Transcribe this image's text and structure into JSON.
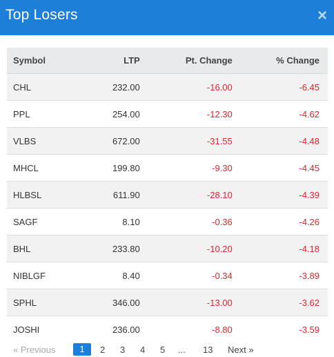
{
  "header": {
    "title": "Top Losers",
    "close_symbol": "×"
  },
  "table": {
    "columns": {
      "symbol": "Symbol",
      "ltp": "LTP",
      "pt_change": "Pt. Change",
      "pct_change": "% Change"
    },
    "rows": [
      {
        "symbol": "CHL",
        "ltp": "232.00",
        "pt_change": "-16.00",
        "pct_change": "-6.45"
      },
      {
        "symbol": "PPL",
        "ltp": "254.00",
        "pt_change": "-12.30",
        "pct_change": "-4.62"
      },
      {
        "symbol": "VLBS",
        "ltp": "672.00",
        "pt_change": "-31.55",
        "pct_change": "-4.48"
      },
      {
        "symbol": "MHCL",
        "ltp": "199.80",
        "pt_change": "-9.30",
        "pct_change": "-4.45"
      },
      {
        "symbol": "HLBSL",
        "ltp": "611.90",
        "pt_change": "-28.10",
        "pct_change": "-4.39"
      },
      {
        "symbol": "SAGF",
        "ltp": "8.10",
        "pt_change": "-0.36",
        "pct_change": "-4.26"
      },
      {
        "symbol": "BHL",
        "ltp": "233.80",
        "pt_change": "-10.20",
        "pct_change": "-4.18"
      },
      {
        "symbol": "NIBLGF",
        "ltp": "8.40",
        "pt_change": "-0.34",
        "pct_change": "-3.89"
      },
      {
        "symbol": "SPHL",
        "ltp": "346.00",
        "pt_change": "-13.00",
        "pct_change": "-3.62"
      },
      {
        "symbol": "JOSHI",
        "ltp": "236.00",
        "pt_change": "-8.80",
        "pct_change": "-3.59"
      }
    ]
  },
  "pagination": {
    "previous": "« Previous",
    "pages": [
      "1",
      "2",
      "3",
      "4",
      "5"
    ],
    "ellipsis": "...",
    "last": "13",
    "next": "Next »",
    "active_page": "1"
  },
  "colors": {
    "header_bg": "#1e7fd8",
    "negative": "#e0242d",
    "header_row_bg": "#e9eaec",
    "stripe_bg": "#f2f2f3"
  }
}
